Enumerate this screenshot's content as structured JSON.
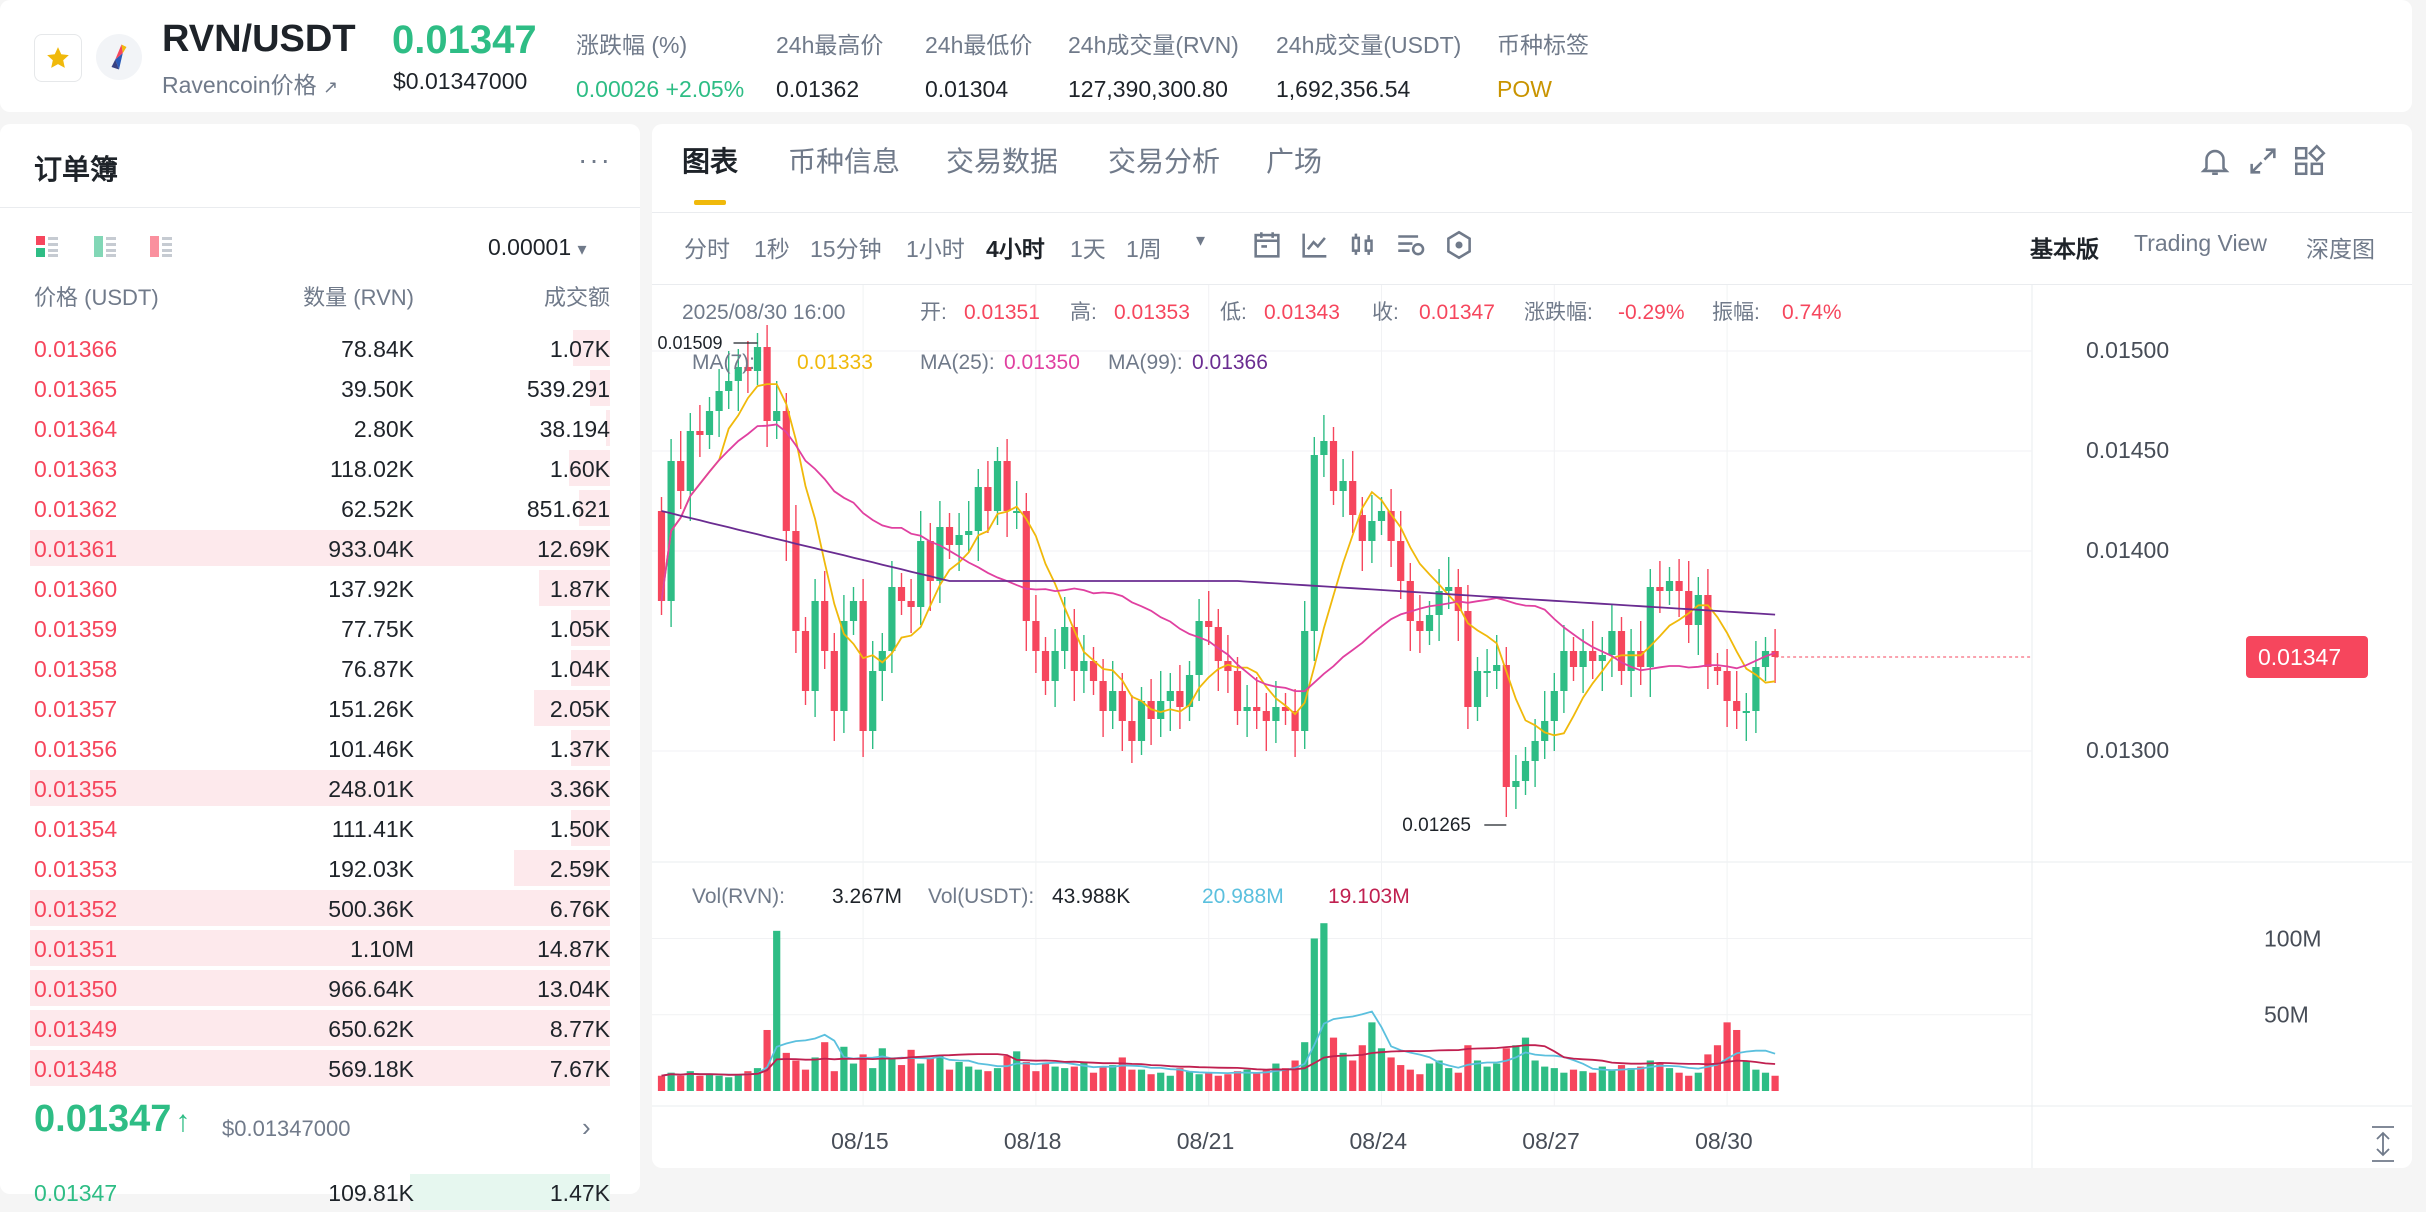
{
  "header": {
    "pair": "RVN/USDT",
    "name": "Ravencoin价格",
    "name_link": "↗",
    "price": "0.01347",
    "price_usd": "$0.01347000",
    "stats": [
      {
        "label": "涨跌幅 (%)",
        "value": "0.00026 +2.05%",
        "color": "#2ebd85"
      },
      {
        "label": "24h最高价",
        "value": "0.01362",
        "color": "#1e2329"
      },
      {
        "label": "24h最低价",
        "value": "0.01304",
        "color": "#1e2329"
      },
      {
        "label": "24h成交量(RVN)",
        "value": "127,390,300.80",
        "color": "#1e2329"
      },
      {
        "label": "24h成交量(USDT)",
        "value": "1,692,356.54",
        "color": "#1e2329"
      },
      {
        "label": "币种标签",
        "value": "POW",
        "color": "#c99400"
      }
    ]
  },
  "orderbook": {
    "title": "订单簿",
    "more": "···",
    "precision": "0.00001",
    "headers": {
      "price": "价格 (USDT)",
      "qty": "数量 (RVN)",
      "total": "成交额"
    },
    "asks": [
      {
        "price": "0.01366",
        "qty": "78.84K",
        "total": "1.07K",
        "depth": 0.19
      },
      {
        "price": "0.01365",
        "qty": "39.50K",
        "total": "539.291",
        "depth": 0.1
      },
      {
        "price": "0.01364",
        "qty": "2.80K",
        "total": "38.194",
        "depth": 0.02
      },
      {
        "price": "0.01363",
        "qty": "118.02K",
        "total": "1.60K",
        "depth": 0.21
      },
      {
        "price": "0.01362",
        "qty": "62.52K",
        "total": "851.621",
        "depth": 0.16
      },
      {
        "price": "0.01361",
        "qty": "933.04K",
        "total": "12.69K",
        "depth": 1.0
      },
      {
        "price": "0.01360",
        "qty": "137.92K",
        "total": "1.87K",
        "depth": 0.36
      },
      {
        "price": "0.01359",
        "qty": "77.75K",
        "total": "1.05K",
        "depth": 0.2
      },
      {
        "price": "0.01358",
        "qty": "76.87K",
        "total": "1.04K",
        "depth": 0.2
      },
      {
        "price": "0.01357",
        "qty": "151.26K",
        "total": "2.05K",
        "depth": 0.39
      },
      {
        "price": "0.01356",
        "qty": "101.46K",
        "total": "1.37K",
        "depth": 0.2
      },
      {
        "price": "0.01355",
        "qty": "248.01K",
        "total": "3.36K",
        "depth": 1.0
      },
      {
        "price": "0.01354",
        "qty": "111.41K",
        "total": "1.50K",
        "depth": 0.2
      },
      {
        "price": "0.01353",
        "qty": "192.03K",
        "total": "2.59K",
        "depth": 0.49
      },
      {
        "price": "0.01352",
        "qty": "500.36K",
        "total": "6.76K",
        "depth": 1.0
      },
      {
        "price": "0.01351",
        "qty": "1.10M",
        "total": "14.87K",
        "depth": 1.0
      },
      {
        "price": "0.01350",
        "qty": "966.64K",
        "total": "13.04K",
        "depth": 1.0
      },
      {
        "price": "0.01349",
        "qty": "650.62K",
        "total": "8.77K",
        "depth": 1.0
      },
      {
        "price": "0.01348",
        "qty": "569.18K",
        "total": "7.67K",
        "depth": 1.0
      }
    ],
    "mid_price": "0.01347",
    "mid_arrow": "↑",
    "mid_usd": "$0.01347000",
    "mid_chevron": "›",
    "bid_partial": {
      "price": "0.01347",
      "qty": "109.81K",
      "total": "1.47K"
    }
  },
  "chart_panel": {
    "tabs": [
      "图表",
      "币种信息",
      "交易数据",
      "交易分析",
      "广场"
    ],
    "active_tab": 0,
    "timeframes": [
      "分时",
      "1秒",
      "15分钟",
      "1小时",
      "4小时",
      "1天",
      "1周"
    ],
    "active_timeframe": 4,
    "timeframe_more": "▾",
    "views": [
      "基本版",
      "Trading View",
      "深度图"
    ],
    "active_view": 0
  },
  "chart_data": {
    "type": "candlestick",
    "ohlc_label": {
      "date": "2025/08/30 16:00",
      "open_label": "开:",
      "open": "0.01351",
      "high_label": "高:",
      "high": "0.01353",
      "low_label": "低:",
      "low": "0.01343",
      "close_label": "收:",
      "close": "0.01347",
      "change_label": "涨跌幅:",
      "change": "-0.29%",
      "amp_label": "振幅:",
      "amp": "0.74%"
    },
    "ma_label": {
      "ma7_label": "MA(7):",
      "ma7": "0.01333",
      "ma25_label": "MA(25):",
      "ma25": "0.01350",
      "ma99_label": "MA(99):",
      "ma99": "0.01366"
    },
    "vol_label": {
      "rvn_label": "Vol(RVN):",
      "rvn": "3.267M",
      "usdt_label": "Vol(USDT):",
      "usdt": "43.988K",
      "ma1": "20.988M",
      "ma2": "19.103M"
    },
    "price_ticks": [
      "0.01500",
      "0.01450",
      "0.01400",
      "0.01300"
    ],
    "price_tick_values": [
      0.015,
      0.0145,
      0.014,
      0.013
    ],
    "current_price_tag": "0.01347",
    "high_marker": "0.01509",
    "low_marker": "0.01265",
    "vol_ticks": [
      "100M",
      "50M"
    ],
    "vol_tick_values": [
      100,
      50
    ],
    "x_ticks": [
      "08/15",
      "08/18",
      "08/21",
      "08/24",
      "08/27",
      "08/30"
    ],
    "x_tick_candle_index": [
      21,
      39,
      57,
      75,
      93,
      111
    ],
    "ylim": [
      0.01245,
      0.01525
    ],
    "vol_ylim": [
      0,
      118
    ],
    "colors": {
      "up": "#2ebd85",
      "down": "#f6465d",
      "ma7": "#f0b90b",
      "ma25": "#e040a0",
      "ma99": "#6a2c91",
      "vol_ma1": "#5bc0de",
      "vol_ma2": "#c02050"
    },
    "closes": [
      0.01375,
      0.01445,
      0.0143,
      0.0146,
      0.01458,
      0.0147,
      0.0148,
      0.01485,
      0.01492,
      0.0149,
      0.01502,
      0.01465,
      0.0147,
      0.0141,
      0.0136,
      0.0133,
      0.01375,
      0.0135,
      0.0132,
      0.01365,
      0.01375,
      0.0131,
      0.0134,
      0.0135,
      0.01382,
      0.01375,
      0.01372,
      0.01405,
      0.01385,
      0.01412,
      0.01403,
      0.01408,
      0.0141,
      0.01432,
      0.0142,
      0.01445,
      0.0142,
      0.0142,
      0.01365,
      0.0135,
      0.01335,
      0.0135,
      0.01362,
      0.0134,
      0.01345,
      0.01335,
      0.0132,
      0.0133,
      0.01315,
      0.01305,
      0.01325,
      0.01316,
      0.01325,
      0.0133,
      0.01322,
      0.01338,
      0.01365,
      0.01362,
      0.01345,
      0.0134,
      0.0132,
      0.01322,
      0.0132,
      0.01315,
      0.01322,
      0.0132,
      0.0131,
      0.0136,
      0.01448,
      0.01455,
      0.0143,
      0.01435,
      0.01418,
      0.01405,
      0.01415,
      0.0142,
      0.01405,
      0.01385,
      0.01365,
      0.0136,
      0.01368,
      0.0138,
      0.01382,
      0.0137,
      0.01322,
      0.0134,
      0.0134,
      0.01343,
      0.01282,
      0.01285,
      0.01295,
      0.01305,
      0.01315,
      0.0133,
      0.0135,
      0.01342,
      0.0135,
      0.01345,
      0.01348,
      0.0136,
      0.0134,
      0.0135,
      0.01342,
      0.01382,
      0.0138,
      0.01385,
      0.0138,
      0.01363,
      0.01378,
      0.01342,
      0.0134,
      0.01325,
      0.0132,
      0.0132,
      0.01342,
      0.0135,
      0.01347
    ],
    "volumes": [
      10,
      12,
      10,
      13,
      10,
      11,
      10,
      9,
      11,
      13,
      15,
      40,
      105,
      25,
      20,
      14,
      22,
      32,
      13,
      29,
      18,
      24,
      15,
      28,
      22,
      17,
      27,
      18,
      22,
      23,
      14,
      19,
      16,
      14,
      13,
      15,
      23,
      26,
      19,
      13,
      18,
      16,
      15,
      16,
      19,
      12,
      16,
      17,
      22,
      14,
      14,
      11,
      12,
      10,
      15,
      13,
      11,
      12,
      10,
      11,
      13,
      14,
      12,
      14,
      18,
      15,
      20,
      32,
      100,
      110,
      35,
      25,
      20,
      30,
      45,
      28,
      22,
      17,
      14,
      11,
      18,
      20,
      15,
      12,
      30,
      20,
      16,
      18,
      28,
      30,
      35,
      20,
      16,
      15,
      12,
      14,
      13,
      12,
      16,
      14,
      17,
      15,
      16,
      20,
      18,
      15,
      12,
      10,
      12,
      24,
      30,
      45,
      40,
      20,
      14,
      12,
      10
    ]
  },
  "icons": [
    "star-icon",
    "raven-logo-icon",
    "bell-icon",
    "expand-icon",
    "layout-grid-icon"
  ]
}
